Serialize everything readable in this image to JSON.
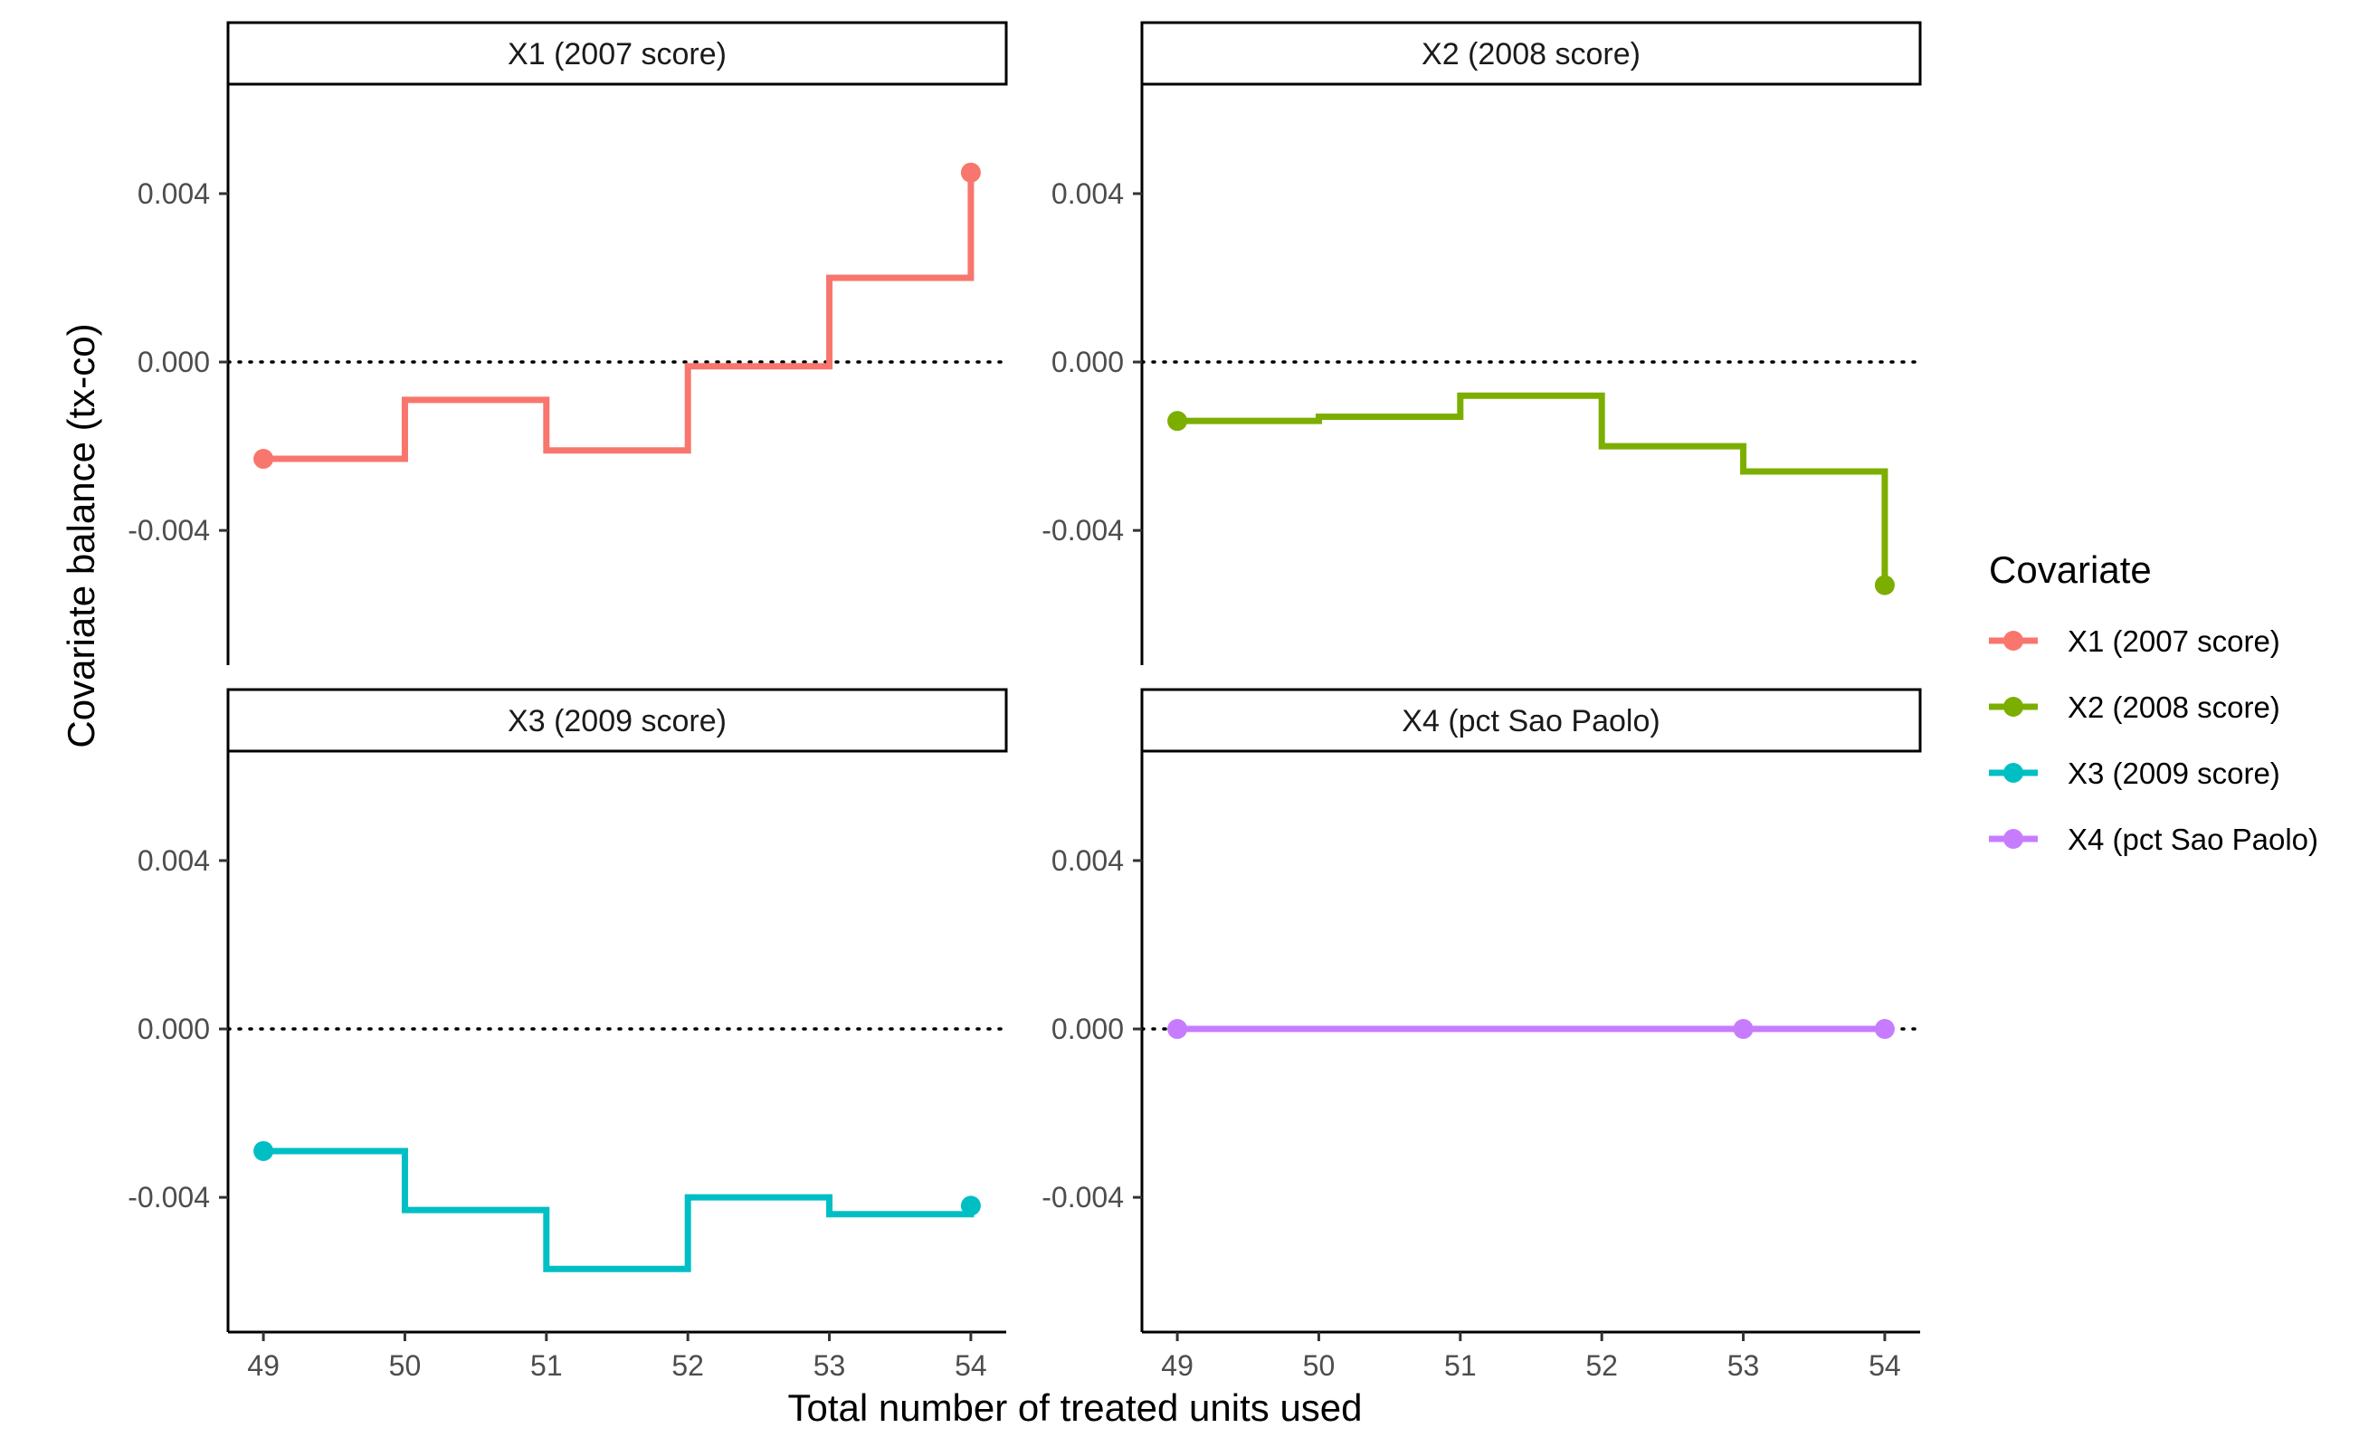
{
  "chart_data": {
    "type": "line",
    "subtype": "step",
    "facet_layout": "2x2",
    "xlabel": "Total number of treated units used",
    "ylabel": "Covariate balance (tx-co)",
    "xlim": [
      48.75,
      54.25
    ],
    "ylim": [
      -0.0072,
      0.0066
    ],
    "x_ticks": [
      49,
      50,
      51,
      52,
      53,
      54
    ],
    "x_tick_labels": [
      "49",
      "50",
      "51",
      "52",
      "53",
      "54"
    ],
    "y_ticks": [
      0.004,
      0.0,
      -0.004
    ],
    "y_tick_labels": [
      "0.004",
      "0.000",
      "-0.004"
    ],
    "reference_line": {
      "y": 0.0,
      "style": "dotted"
    },
    "legend": {
      "title": "Covariate",
      "placement": "right"
    },
    "series": [
      {
        "name": "X1 (2007 score)",
        "strip": "X1 (2007 score)",
        "color": "#F8766D",
        "x": [
          49,
          50,
          51,
          52,
          53,
          54
        ],
        "y": [
          -0.0023,
          -0.0009,
          -0.0021,
          -0.0001,
          0.002,
          0.0045
        ],
        "points_at": [
          49,
          54
        ]
      },
      {
        "name": "X2 (2008 score)",
        "strip": "X2 (2008 score)",
        "color": "#7CAE00",
        "x": [
          49,
          50,
          51,
          52,
          53,
          54
        ],
        "y": [
          -0.0014,
          -0.0013,
          -0.0008,
          -0.002,
          -0.0026,
          -0.0053
        ],
        "points_at": [
          49,
          54
        ]
      },
      {
        "name": "X3 (2009 score)",
        "strip": "X3 (2009 score)",
        "color": "#00BFC4",
        "x": [
          49,
          50,
          51,
          52,
          53,
          54
        ],
        "y": [
          -0.0029,
          -0.0043,
          -0.0057,
          -0.004,
          -0.0044,
          -0.0042
        ],
        "points_at": [
          49,
          54
        ]
      },
      {
        "name": "X4 (pct Sao Paolo)",
        "strip": "X4 (pct Sao Paolo)",
        "color": "#C77CFF",
        "x": [
          49,
          50,
          51,
          52,
          53,
          54
        ],
        "y": [
          0.0,
          0.0,
          0.0,
          0.0,
          0.0,
          0.0
        ],
        "points_at": [
          49,
          53,
          54
        ]
      }
    ]
  }
}
